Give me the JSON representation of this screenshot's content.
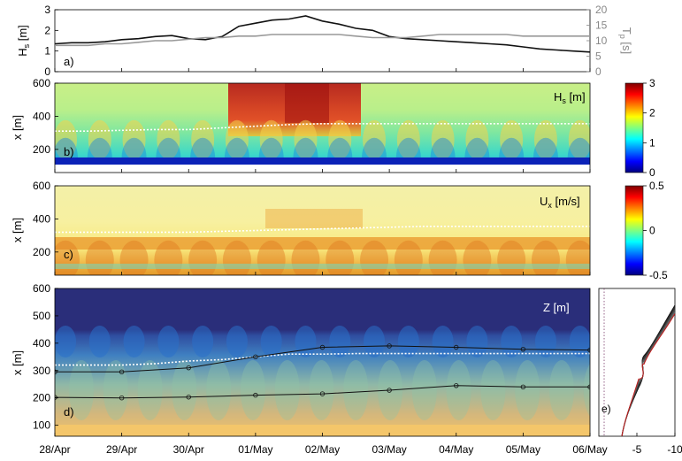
{
  "x_axis": {
    "dates": [
      "28/Apr",
      "29/Apr",
      "30/Apr",
      "01/May",
      "02/May",
      "03/May",
      "04/May",
      "05/May",
      "06/May"
    ]
  },
  "chart_data": [
    {
      "id": "a",
      "panel_label": "a)",
      "type": "line",
      "ylabel_left": "Hs [m]",
      "ylabel_left_main": "H",
      "ylabel_left_sub": "s",
      "ylabel_left_unit": " [m]",
      "ylabel_right": "Tp [s]",
      "ylabel_right_main": "T",
      "ylabel_right_sub": "p",
      "ylabel_right_unit": " [s]",
      "ylim_left": [
        0,
        3
      ],
      "ylim_right": [
        0,
        20
      ],
      "yticks_left": [
        "0",
        "1",
        "2",
        "3"
      ],
      "yticks_right": [
        "0",
        "5",
        "10",
        "15",
        "20"
      ],
      "x": [
        0,
        0.25,
        0.5,
        0.75,
        1,
        1.25,
        1.5,
        1.75,
        2,
        2.25,
        2.5,
        2.75,
        3,
        3.25,
        3.5,
        3.75,
        4,
        4.25,
        4.5,
        4.75,
        5,
        5.25,
        5.5,
        5.75,
        6,
        6.25,
        6.5,
        6.75,
        7,
        7.25,
        7.5,
        7.75,
        8
      ],
      "series": [
        {
          "color": "#111111",
          "axis": "left",
          "values": [
            1.35,
            1.4,
            1.4,
            1.45,
            1.55,
            1.6,
            1.7,
            1.75,
            1.6,
            1.55,
            1.7,
            2.2,
            2.35,
            2.5,
            2.55,
            2.7,
            2.45,
            2.3,
            2.1,
            2.0,
            1.7,
            1.6,
            1.55,
            1.5,
            1.45,
            1.4,
            1.35,
            1.3,
            1.2,
            1.1,
            1.05,
            1.0,
            0.95
          ]
        },
        {
          "color": "#999999",
          "axis": "right",
          "values": [
            8.5,
            8.5,
            8.5,
            9,
            9,
            9.5,
            10,
            10,
            10.5,
            11,
            11,
            11.5,
            11.5,
            12,
            12,
            12,
            12,
            12,
            11.5,
            11,
            11,
            11,
            11.5,
            12,
            12,
            12,
            12,
            12,
            11.5,
            11.5,
            11.5,
            11.5,
            11.5
          ]
        }
      ]
    },
    {
      "id": "b",
      "panel_label": "b)",
      "type": "heatmap",
      "ylabel": "x [m]",
      "ylim": [
        60,
        600
      ],
      "yticks": [
        200,
        400,
        600
      ],
      "field_label": "Hs [m]",
      "field_label_main": "H",
      "field_label_sub": "s",
      "field_label_unit": " [m]",
      "colorbar_range": [
        0,
        3
      ],
      "colorbar_ticks": [
        "3",
        "2",
        "1",
        "0"
      ],
      "white_line_x": [
        310,
        310,
        315,
        320,
        320,
        330,
        340,
        350,
        355,
        355,
        355,
        355,
        355,
        355,
        355,
        355,
        355
      ]
    },
    {
      "id": "c",
      "panel_label": "c)",
      "type": "heatmap",
      "ylabel": "x [m]",
      "ylim": [
        60,
        600
      ],
      "yticks": [
        200,
        400,
        600
      ],
      "field_label": "Ux [m/s]",
      "field_label_main": "U",
      "field_label_sub": "x",
      "field_label_unit": " [m/s]",
      "colorbar_range": [
        -0.5,
        0.5
      ],
      "colorbar_ticks": [
        "0.5",
        "0",
        "-0.5"
      ],
      "white_line_x": [
        320,
        320,
        320,
        320,
        320,
        325,
        330,
        335,
        340,
        345,
        350,
        355,
        355,
        355,
        355,
        355,
        355
      ]
    },
    {
      "id": "d",
      "panel_label": "d)",
      "type": "heatmap",
      "ylabel": "x [m]",
      "ylim": [
        60,
        600
      ],
      "yticks": [
        100,
        200,
        300,
        400,
        500,
        600
      ],
      "field_label": "Z [m]",
      "contour_upper": [
        {
          "x": 0,
          "y": 295
        },
        {
          "x": 1,
          "y": 295
        },
        {
          "x": 2,
          "y": 310
        },
        {
          "x": 3,
          "y": 350
        },
        {
          "x": 4,
          "y": 385
        },
        {
          "x": 5,
          "y": 390
        },
        {
          "x": 6,
          "y": 385
        },
        {
          "x": 7,
          "y": 378
        },
        {
          "x": 8,
          "y": 375
        }
      ],
      "contour_lower": [
        {
          "x": 0,
          "y": 202
        },
        {
          "x": 1,
          "y": 200
        },
        {
          "x": 2,
          "y": 203
        },
        {
          "x": 3,
          "y": 210
        },
        {
          "x": 4,
          "y": 215
        },
        {
          "x": 5,
          "y": 228
        },
        {
          "x": 6,
          "y": 245
        },
        {
          "x": 7,
          "y": 240
        },
        {
          "x": 8,
          "y": 240
        }
      ],
      "white_line_x": [
        320,
        320,
        320,
        325,
        335,
        340,
        350,
        360,
        360,
        362,
        362,
        362,
        362,
        362,
        362,
        362,
        362
      ]
    },
    {
      "id": "e",
      "panel_label": "e)",
      "type": "line",
      "xticks": [
        "-5",
        "-10"
      ],
      "xlim": [
        0,
        -10
      ]
    }
  ]
}
